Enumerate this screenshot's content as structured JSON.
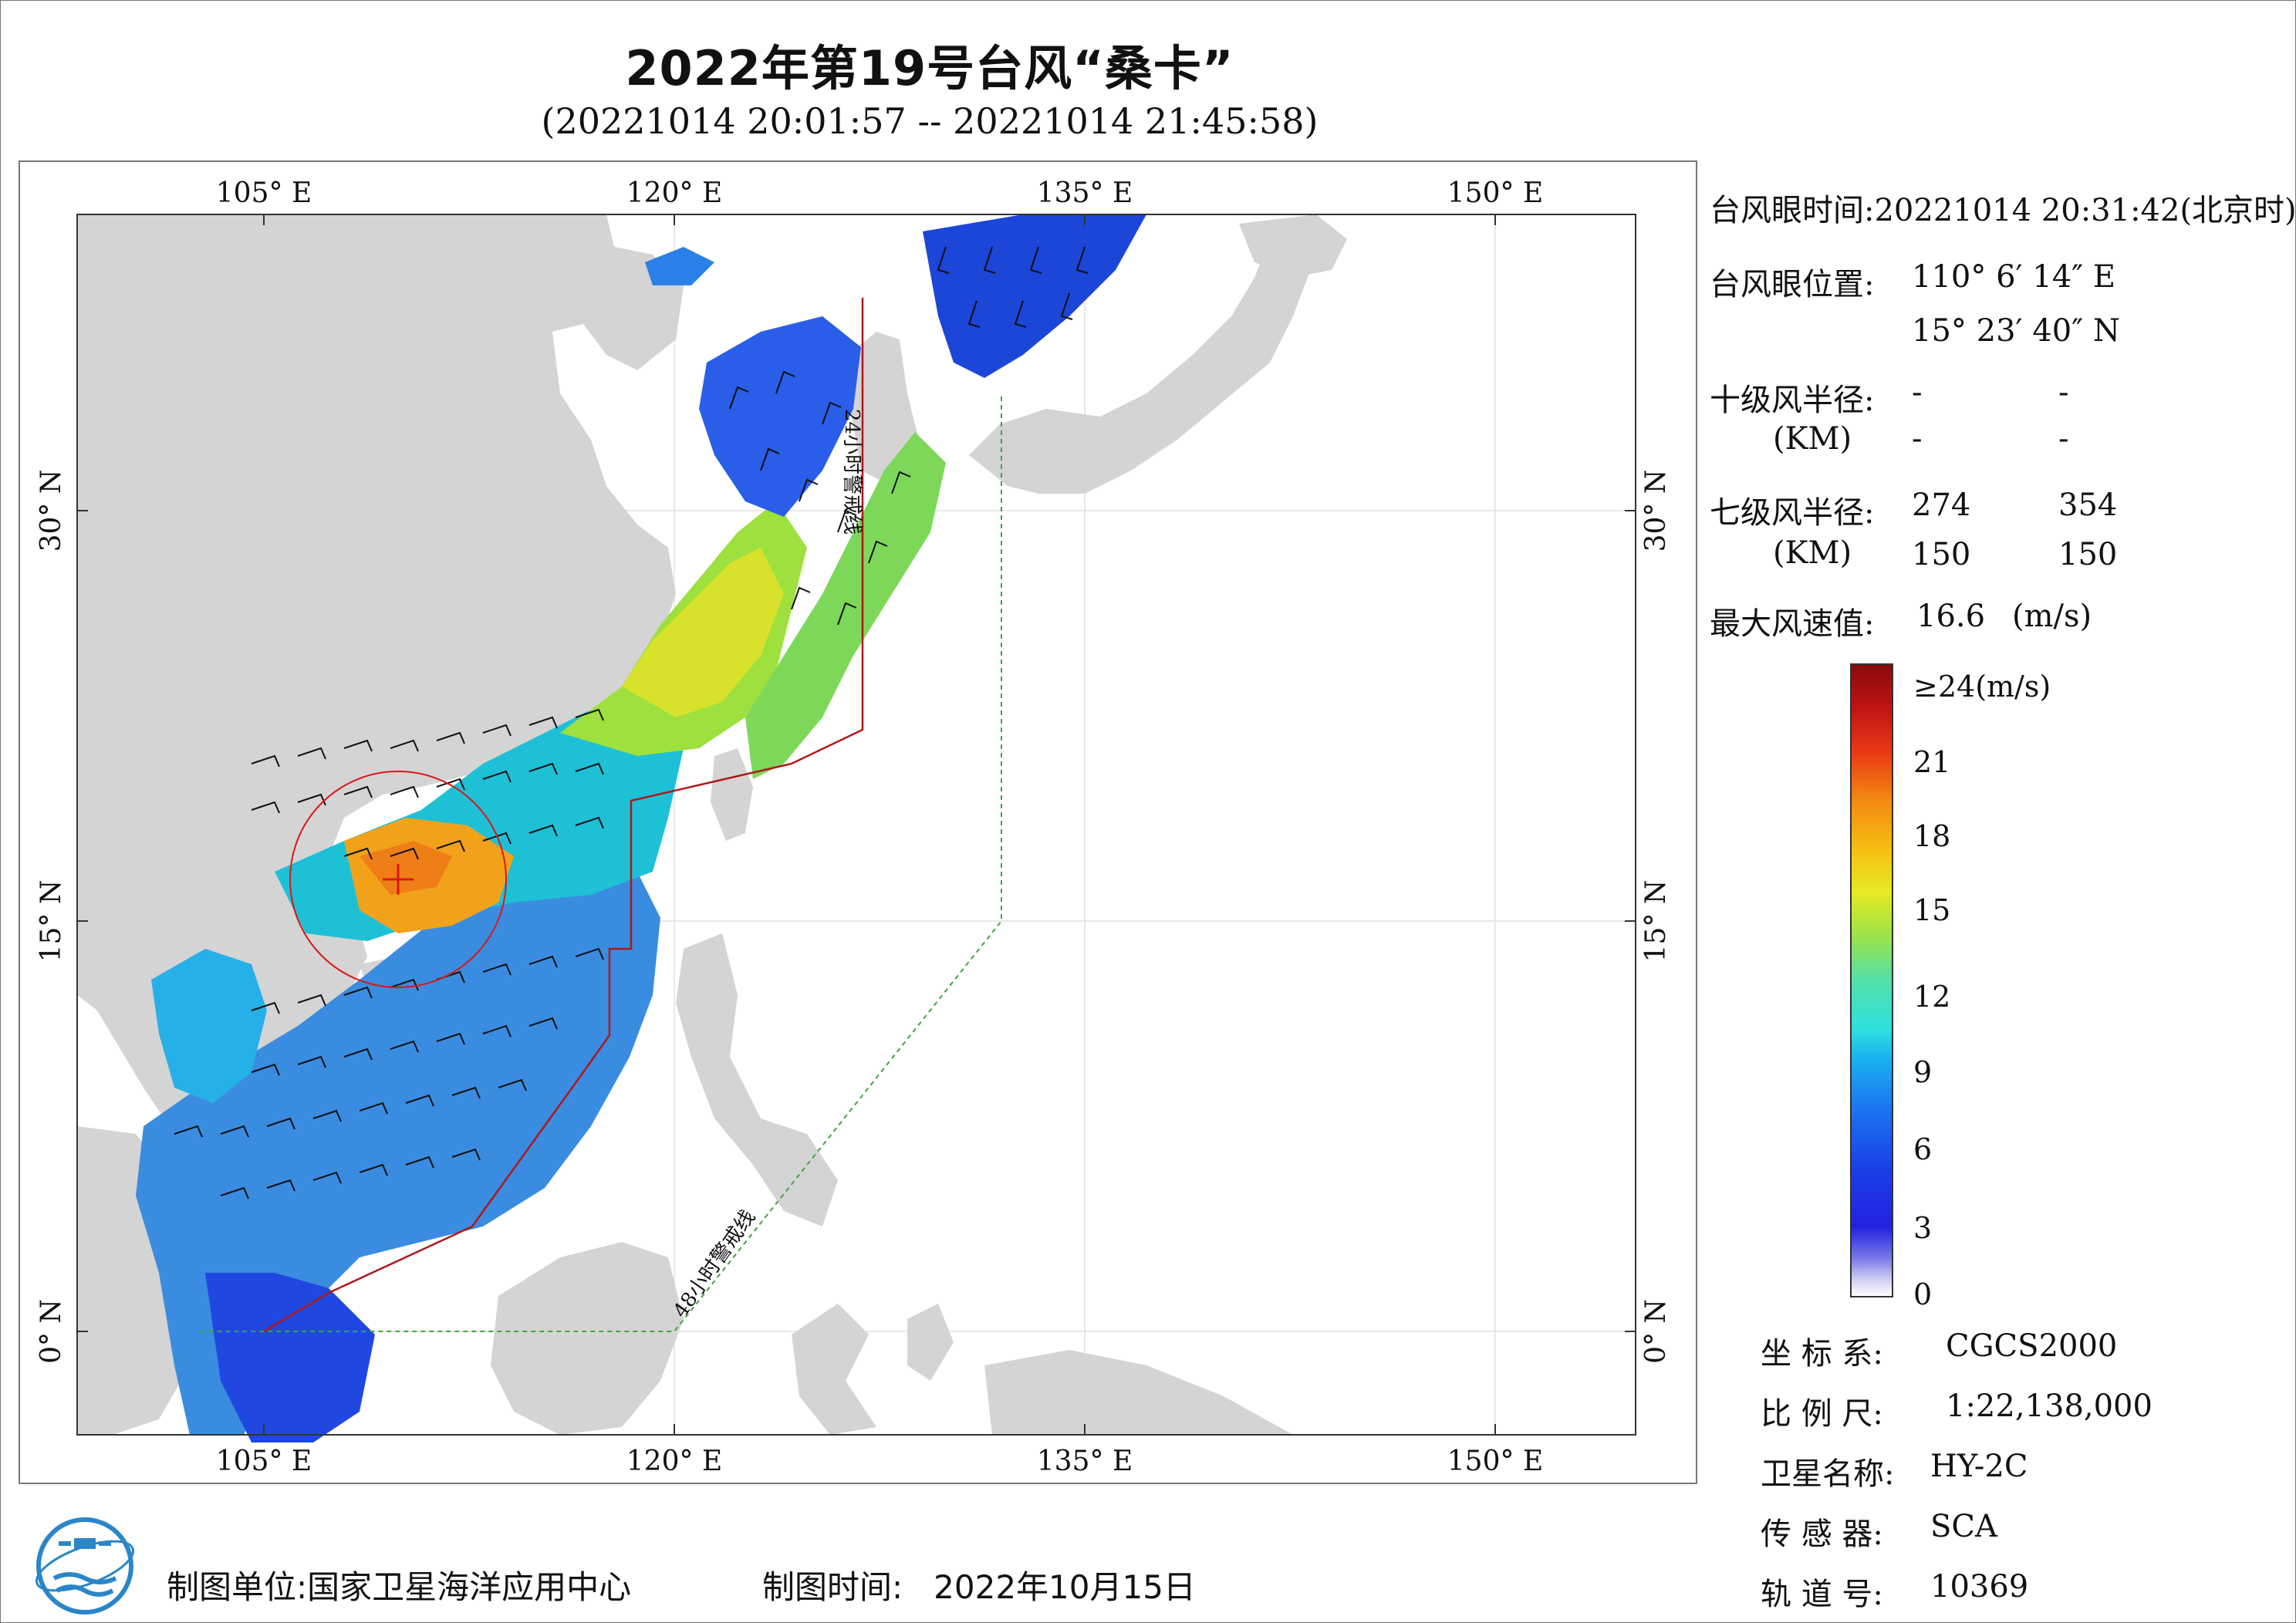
{
  "title": "2022年第19号台风“桑卡”",
  "subtitle": "(20221014 20:01:57 -- 20221014 21:45:58)",
  "map": {
    "lon_labels": [
      "105° E",
      "120° E",
      "135° E",
      "150° E"
    ],
    "lat_labels": [
      "30° N",
      "15° N",
      "0° N"
    ],
    "line_24h": "24小时警戒线",
    "line_48h": "48小时警戒线",
    "colors": {
      "land": "#d4d4d4",
      "sea": "#ffffff",
      "warning_24h": "#b01818",
      "warning_48h": "#3aa83a",
      "typhoon_eye": "#d81818"
    }
  },
  "info": {
    "eye_time_label": "台风眼时间:",
    "eye_time": "20221014 20:31:42(北京时)",
    "eye_pos_label": "台风眼位置:",
    "eye_lon": "110° 6′ 14″ E",
    "eye_lat": "15° 23′ 40″ N",
    "r10_label": "十级风半径:",
    "r10_unit": "(KM)",
    "r10_values": [
      "-",
      "-",
      "-",
      "-"
    ],
    "r7_label": "七级风半径:",
    "r7_unit": "(KM)",
    "r7_values": [
      "274",
      "354",
      "150",
      "150"
    ],
    "max_wind_label": "最大风速值:",
    "max_wind": "16.6",
    "max_wind_unit": "(m/s)"
  },
  "legend": {
    "top_label": "≥24(m/s)",
    "ticks": [
      "21",
      "18",
      "15",
      "12",
      "9",
      "6",
      "3",
      "0"
    ]
  },
  "meta": {
    "crs_label": "坐 标 系:",
    "crs": "CGCS2000",
    "scale_label": "比 例 尺:",
    "scale": "1:22,138,000",
    "satellite_label": "卫星名称:",
    "satellite": "HY-2C",
    "sensor_label": "传 感 器:",
    "sensor": "SCA",
    "orbit_label": "轨 道 号:",
    "orbit": "10369"
  },
  "footer": {
    "producer_label": "制图单位:",
    "producer": "国家卫星海洋应用中心",
    "date_label": "制图时间:",
    "date": "2022年10月15日"
  }
}
